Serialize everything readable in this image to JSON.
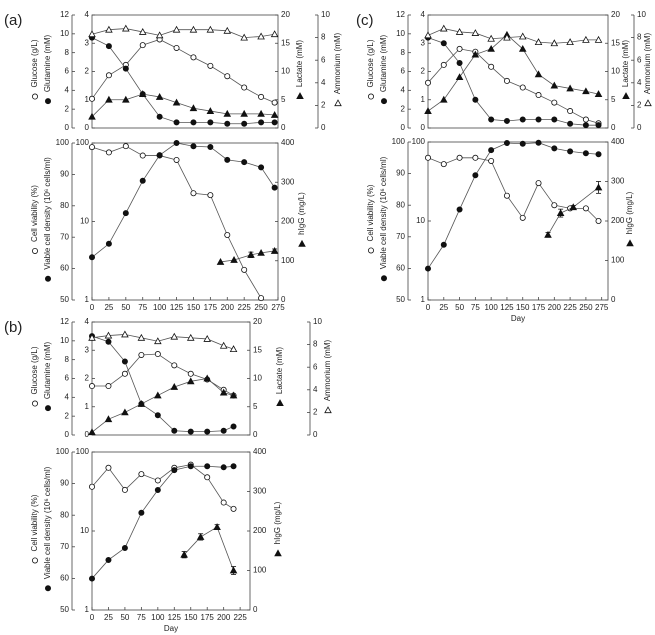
{
  "chart_data": [
    {
      "type": "line",
      "panel": "(a)",
      "xlim": [
        0,
        275
      ],
      "ylabel": "Glucose (g/L)",
      "ylim": [
        0,
        12
      ],
      "yticks": [
        0,
        2,
        4,
        6,
        8,
        10,
        12
      ],
      "y2label": "Glutamine (mM)",
      "y2lim": [
        0,
        4
      ],
      "y2ticks": [
        0,
        1,
        2,
        3,
        4
      ],
      "y3label": "Lactate (mM)",
      "y3lim": [
        0,
        20
      ],
      "y3ticks": [
        0,
        5,
        10,
        15,
        20
      ],
      "y4label": "Ammonium (mM)",
      "y4lim": [
        0,
        10
      ],
      "y4ticks": [
        0,
        2,
        4,
        6,
        8,
        10
      ],
      "series": [
        {
          "axis": "y",
          "marker": "open-circle",
          "x": [
            0,
            25,
            50,
            75,
            100,
            125,
            150,
            175,
            200,
            225,
            250,
            270
          ],
          "values": [
            3.1,
            5.6,
            6.7,
            8.8,
            9.4,
            8.5,
            7.5,
            6.6,
            5.5,
            4.3,
            3.3,
            2.7
          ]
        },
        {
          "axis": "y2",
          "marker": "filled-circle",
          "x": [
            0,
            25,
            50,
            75,
            100,
            125,
            150,
            175,
            200,
            225,
            250,
            270
          ],
          "values": [
            3.2,
            2.9,
            2.1,
            1.2,
            0.4,
            0.2,
            0.2,
            0.2,
            0.15,
            0.15,
            0.2,
            0.2
          ]
        },
        {
          "axis": "y3",
          "marker": "filled-triangle",
          "x": [
            0,
            25,
            50,
            75,
            100,
            125,
            150,
            175,
            200,
            225,
            250,
            270
          ],
          "values": [
            2,
            5,
            5,
            6,
            5.5,
            4.5,
            3.5,
            3,
            2.5,
            2.5,
            2.5,
            2.3
          ]
        },
        {
          "axis": "y4",
          "marker": "open-triangle",
          "x": [
            0,
            25,
            50,
            75,
            100,
            125,
            150,
            175,
            200,
            225,
            250,
            270
          ],
          "values": [
            8.3,
            8.7,
            8.8,
            8.5,
            8.2,
            8.7,
            8.7,
            8.7,
            8.6,
            8.0,
            8.1,
            8.3
          ]
        }
      ]
    },
    {
      "type": "line",
      "xlim": [
        0,
        275
      ],
      "xticks": [
        0,
        25,
        50,
        75,
        100,
        125,
        150,
        175,
        200,
        225,
        250,
        275
      ],
      "ylabel": "Cell viability (%)",
      "ylim": [
        50,
        100
      ],
      "yticks": [
        50,
        60,
        70,
        80,
        90,
        100
      ],
      "y2label": "Viable cell density (10⁶ cells/ml)",
      "y2lim": [
        1,
        100
      ],
      "y2ticks": [
        1,
        10,
        100
      ],
      "y2log": true,
      "y3label": "hIgG (mg/L)",
      "y3lim": [
        0,
        400
      ],
      "y3ticks": [
        0,
        100,
        200,
        300,
        400
      ],
      "series": [
        {
          "axis": "y",
          "marker": "open-circle",
          "x": [
            0,
            25,
            50,
            75,
            100,
            125,
            150,
            175,
            200,
            225,
            250
          ],
          "values": [
            98.7,
            97,
            99,
            96,
            96,
            94.6,
            84,
            83.4,
            70.7,
            59.6,
            50.6
          ]
        },
        {
          "axis": "y2",
          "marker": "filled-circle",
          "x": [
            0,
            25,
            50,
            75,
            100,
            125,
            150,
            175,
            200,
            225,
            250,
            270
          ],
          "values": [
            3.5,
            5.2,
            12.8,
            33,
            70,
            100,
            91,
            89,
            61,
            57,
            49,
            27
          ]
        },
        {
          "axis": "y3",
          "marker": "filled-triangle",
          "x": [
            190,
            210,
            235,
            250,
            270
          ],
          "values": [
            97,
            102,
            115,
            120,
            125
          ],
          "errors": [
            0,
            0,
            7,
            0,
            5
          ]
        }
      ]
    },
    {
      "type": "line",
      "panel": "(b)",
      "xlim": [
        0,
        240
      ],
      "ylabel": "Glucose (g/L)",
      "ylim": [
        0,
        12
      ],
      "yticks": [
        0,
        2,
        4,
        6,
        8,
        10,
        12
      ],
      "y2label": "Glutamine (mM)",
      "y2lim": [
        0,
        4
      ],
      "y2ticks": [
        0,
        1,
        2,
        3,
        4
      ],
      "y3label": "Lactate (mM)",
      "y3lim": [
        0,
        20
      ],
      "y3ticks": [
        0,
        5,
        10,
        15,
        20
      ],
      "y4label": "Ammonium (mM)",
      "y4lim": [
        0,
        10
      ],
      "y4ticks": [
        0,
        2,
        4,
        6,
        8,
        10
      ],
      "series": [
        {
          "axis": "y",
          "marker": "open-circle",
          "x": [
            0,
            25,
            50,
            75,
            100,
            125,
            150,
            175,
            200,
            215
          ],
          "values": [
            5.2,
            5.2,
            6.5,
            8.5,
            8.6,
            7.4,
            6.5,
            5.9,
            4.8,
            4.2
          ]
        },
        {
          "axis": "y2",
          "marker": "filled-circle",
          "x": [
            0,
            25,
            50,
            75,
            100,
            125,
            150,
            175,
            200,
            215
          ],
          "values": [
            3.5,
            3.3,
            2.6,
            1.1,
            0.7,
            0.15,
            0.12,
            0.12,
            0.15,
            0.3
          ]
        },
        {
          "axis": "y3",
          "marker": "filled-triangle",
          "x": [
            0,
            25,
            50,
            75,
            100,
            125,
            150,
            175,
            200,
            215
          ],
          "values": [
            0.5,
            2.8,
            4,
            5.5,
            7,
            8.5,
            9.5,
            10,
            7.5,
            7
          ]
        },
        {
          "axis": "y4",
          "marker": "open-triangle",
          "x": [
            0,
            25,
            50,
            75,
            100,
            125,
            150,
            175,
            200,
            215
          ],
          "values": [
            8.6,
            8.8,
            8.9,
            8.6,
            8.3,
            8.7,
            8.6,
            8.5,
            7.9,
            7.6
          ]
        }
      ]
    },
    {
      "type": "line",
      "xlim": [
        0,
        240
      ],
      "xticks": [
        0,
        25,
        50,
        75,
        100,
        125,
        150,
        175,
        200,
        225
      ],
      "xlabel": "Day",
      "ylabel": "Cell viability (%)",
      "ylim": [
        50,
        100
      ],
      "yticks": [
        50,
        60,
        70,
        80,
        90,
        100
      ],
      "y2label": "Viable cell density (10⁶ cells/ml)",
      "y2lim": [
        1,
        100
      ],
      "y2ticks": [
        1,
        10,
        100
      ],
      "y2log": true,
      "y3label": "hIgG (mg/L)",
      "y3lim": [
        0,
        400
      ],
      "y3ticks": [
        0,
        100,
        200,
        300,
        400
      ],
      "series": [
        {
          "axis": "y",
          "marker": "open-circle",
          "x": [
            0,
            25,
            50,
            75,
            100,
            125,
            150,
            175,
            200,
            215
          ],
          "values": [
            89,
            95,
            88,
            93,
            91,
            95,
            96,
            92,
            84,
            82
          ]
        },
        {
          "axis": "y2",
          "marker": "filled-circle",
          "x": [
            0,
            25,
            50,
            75,
            100,
            125,
            150,
            175,
            200,
            215
          ],
          "values": [
            2.5,
            4.3,
            6.1,
            17,
            33,
            59,
            66,
            66,
            64,
            66
          ]
        },
        {
          "axis": "y3",
          "marker": "filled-triangle",
          "x": [
            140,
            165,
            190,
            215
          ],
          "values": [
            140,
            185,
            210,
            100
          ],
          "errors": [
            8,
            8,
            6,
            10
          ]
        }
      ]
    },
    {
      "type": "line",
      "panel": "(c)",
      "xlim": [
        0,
        285
      ],
      "ylabel": "Glucose (g/L)",
      "ylim": [
        0,
        12
      ],
      "yticks": [
        0,
        2,
        4,
        6,
        8,
        10,
        12
      ],
      "y2label": "Glutamine (mM)",
      "y2lim": [
        0,
        4
      ],
      "y2ticks": [
        0,
        1,
        2,
        3,
        4
      ],
      "y3label": "Lactate (mM)",
      "y3lim": [
        0,
        20
      ],
      "y3ticks": [
        0,
        5,
        10,
        15,
        20
      ],
      "y4label": "Ammonium (mM)",
      "y4lim": [
        0,
        10
      ],
      "y4ticks": [
        0,
        2,
        4,
        6,
        8,
        10
      ],
      "series": [
        {
          "axis": "y",
          "marker": "open-circle",
          "x": [
            0,
            25,
            50,
            75,
            100,
            125,
            150,
            175,
            200,
            225,
            250,
            270
          ],
          "values": [
            4.8,
            6.7,
            8.4,
            8.1,
            6.5,
            5.0,
            4.3,
            3.5,
            2.7,
            1.8,
            0.9,
            0.5
          ]
        },
        {
          "axis": "y2",
          "marker": "filled-circle",
          "x": [
            0,
            25,
            50,
            75,
            100,
            125,
            150,
            175,
            200,
            225,
            250,
            270
          ],
          "values": [
            3.2,
            3.0,
            2.3,
            1.0,
            0.3,
            0.25,
            0.3,
            0.3,
            0.3,
            0.15,
            0.1,
            0.1
          ]
        },
        {
          "axis": "y3",
          "marker": "filled-triangle",
          "x": [
            0,
            25,
            50,
            75,
            100,
            125,
            150,
            175,
            200,
            225,
            250,
            270
          ],
          "values": [
            3,
            5,
            9,
            13,
            14,
            16.5,
            14,
            9.5,
            7.5,
            7,
            6.5,
            6
          ]
        },
        {
          "axis": "y4",
          "marker": "open-triangle",
          "x": [
            0,
            25,
            50,
            75,
            100,
            125,
            150,
            175,
            200,
            225,
            250,
            270
          ],
          "values": [
            8.2,
            8.8,
            8.5,
            8.4,
            7.9,
            8.0,
            8.1,
            7.6,
            7.5,
            7.6,
            7.8,
            7.8
          ]
        }
      ]
    },
    {
      "type": "line",
      "xlim": [
        0,
        285
      ],
      "xticks": [
        0,
        25,
        50,
        75,
        100,
        125,
        150,
        175,
        200,
        225,
        250,
        275
      ],
      "xlabel": "Day",
      "ylabel": "Cell viability (%)",
      "ylim": [
        50,
        100
      ],
      "yticks": [
        50,
        60,
        70,
        80,
        90,
        100
      ],
      "y2label": "Viable cell density (10⁶ cells/ml)",
      "y2lim": [
        1,
        100
      ],
      "y2ticks": [
        1,
        10,
        100
      ],
      "y2log": true,
      "y3label": "hIgG (mg/L)",
      "y3lim": [
        0,
        400
      ],
      "y3ticks": [
        0,
        100,
        200,
        300,
        400
      ],
      "series": [
        {
          "axis": "y",
          "marker": "open-circle",
          "x": [
            0,
            25,
            50,
            75,
            100,
            125,
            150,
            175,
            200,
            225,
            250,
            270
          ],
          "values": [
            95,
            93,
            95,
            95,
            94,
            83,
            76,
            87,
            80,
            79,
            79,
            75
          ]
        },
        {
          "axis": "y2",
          "marker": "filled-circle",
          "x": [
            0,
            25,
            50,
            75,
            100,
            125,
            150,
            175,
            200,
            225,
            250,
            270
          ],
          "values": [
            2.5,
            5,
            14,
            38,
            79,
            97,
            95,
            98,
            83,
            76,
            72,
            70
          ]
        },
        {
          "axis": "y3",
          "marker": "filled-triangle",
          "x": [
            190,
            210,
            230,
            270
          ],
          "values": [
            165,
            220,
            235,
            285
          ],
          "errors": [
            6,
            10,
            4,
            15
          ]
        }
      ]
    }
  ]
}
